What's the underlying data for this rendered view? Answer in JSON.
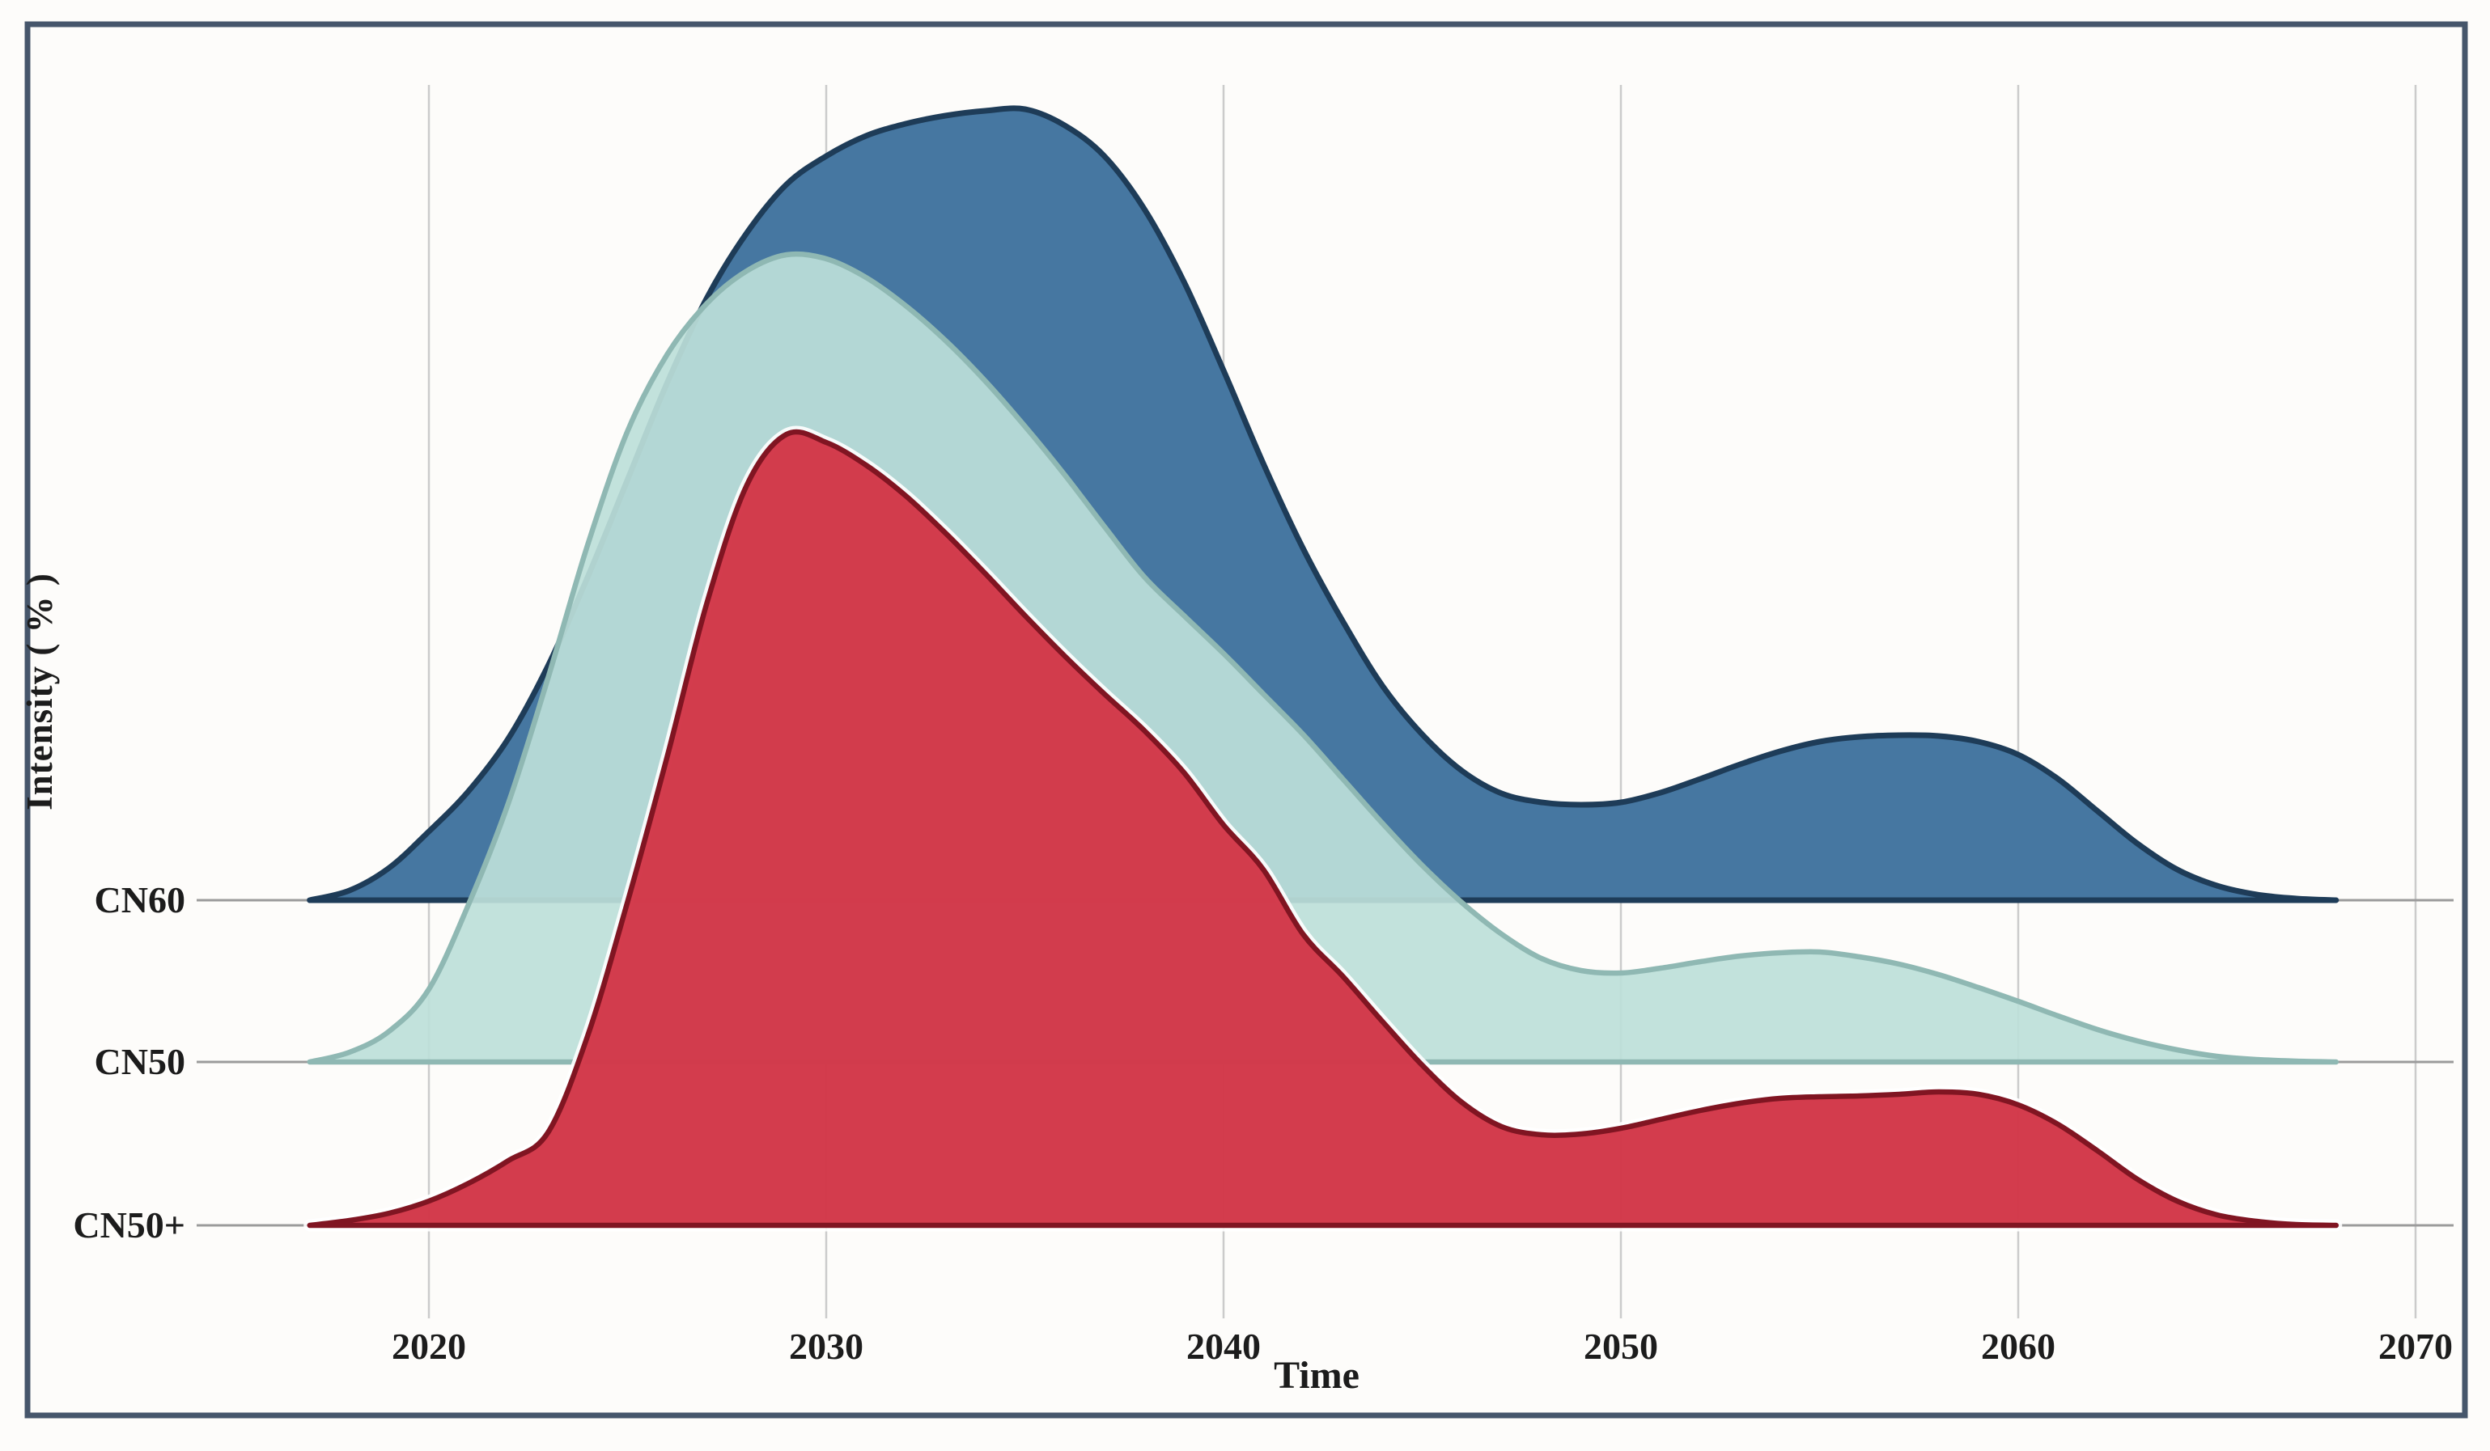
{
  "figure": {
    "xlabel": "Time",
    "ylabel": "Intensity ( % )",
    "rows": [
      "CN60",
      "CN50",
      "CN50+"
    ],
    "x_tick_labels": [
      "2020",
      "2030",
      "2040",
      "2050",
      "2060",
      "2070"
    ]
  },
  "colors": {
    "background": "#fdfcfa",
    "border": "#46566b",
    "grid": "#cbcbcb",
    "baseline": "#9b9b9b",
    "text": "#1c1c1c",
    "halo": "#ffffff",
    "cn60_fill": "#4677a1",
    "cn60_edge": "#1e3c58",
    "cn50_fill": "#bddfd9",
    "cn50_edge": "#8fb8b3",
    "cn50p_fill": "#d23849",
    "cn50p_edge": "#801522"
  },
  "chart_data": {
    "type": "area",
    "subtype": "ridgeline",
    "title": "",
    "xlabel": "Time",
    "ylabel": "Intensity ( % )",
    "x_ticks": [
      2020,
      2030,
      2040,
      2050,
      2060,
      2070
    ],
    "x_range": [
      2016.5,
      2070
    ],
    "grid": "vertical-only",
    "rows_top_to_bottom": [
      "CN60",
      "CN50",
      "CN50+"
    ],
    "draw_order_note": "lower rows drawn on top of upper rows, areas overlap",
    "years": [
      2017,
      2018,
      2019,
      2020,
      2021,
      2022,
      2023,
      2024,
      2025,
      2026,
      2027,
      2028,
      2029,
      2030,
      2031,
      2032,
      2033,
      2034,
      2035,
      2036,
      2037,
      2038,
      2039,
      2040,
      2041,
      2042,
      2043,
      2044,
      2045,
      2046,
      2047,
      2048,
      2049,
      2050,
      2051,
      2052,
      2053,
      2054,
      2055,
      2056,
      2057,
      2058,
      2059,
      2060,
      2061,
      2062,
      2063,
      2064,
      2065,
      2066,
      2067,
      2068
    ],
    "series": [
      {
        "name": "CN60",
        "peak_year": 2035,
        "fill": "#4677a1",
        "edge": "#1e3c58",
        "fill_opacity": 1,
        "halo": false,
        "values": [
          0,
          0.012,
          0.04,
          0.085,
          0.135,
          0.2,
          0.29,
          0.4,
          0.52,
          0.64,
          0.745,
          0.825,
          0.885,
          0.92,
          0.945,
          0.96,
          0.97,
          0.976,
          0.978,
          0.958,
          0.92,
          0.855,
          0.765,
          0.655,
          0.54,
          0.435,
          0.345,
          0.265,
          0.205,
          0.16,
          0.132,
          0.121,
          0.118,
          0.121,
          0.133,
          0.15,
          0.168,
          0.184,
          0.196,
          0.202,
          0.204,
          0.203,
          0.196,
          0.18,
          0.15,
          0.11,
          0.07,
          0.038,
          0.018,
          0.007,
          0.002,
          0
        ]
      },
      {
        "name": "CN50",
        "peak_year": 2029,
        "fill": "#bddfd9",
        "edge": "#8fb8b3",
        "fill_opacity": 0.92,
        "halo": false,
        "values": [
          0,
          0.012,
          0.038,
          0.09,
          0.195,
          0.32,
          0.475,
          0.64,
          0.78,
          0.875,
          0.938,
          0.978,
          0.998,
          0.993,
          0.97,
          0.935,
          0.892,
          0.842,
          0.786,
          0.726,
          0.662,
          0.6,
          0.552,
          0.505,
          0.455,
          0.405,
          0.35,
          0.295,
          0.243,
          0.197,
          0.158,
          0.128,
          0.113,
          0.11,
          0.116,
          0.124,
          0.131,
          0.135,
          0.136,
          0.13,
          0.121,
          0.108,
          0.092,
          0.075,
          0.057,
          0.04,
          0.026,
          0.015,
          0.007,
          0.003,
          0.001,
          0
        ]
      },
      {
        "name": "CN50+",
        "peak_year": 2029,
        "fill": "#d23849",
        "edge": "#801522",
        "fill_opacity": 0.98,
        "halo": true,
        "values": [
          0,
          0.006,
          0.015,
          0.03,
          0.052,
          0.08,
          0.115,
          0.235,
          0.4,
          0.58,
          0.77,
          0.915,
          0.978,
          0.968,
          0.94,
          0.902,
          0.856,
          0.806,
          0.754,
          0.704,
          0.657,
          0.612,
          0.56,
          0.495,
          0.44,
          0.36,
          0.308,
          0.252,
          0.198,
          0.152,
          0.122,
          0.112,
          0.113,
          0.12,
          0.131,
          0.142,
          0.151,
          0.157,
          0.159,
          0.16,
          0.162,
          0.165,
          0.162,
          0.149,
          0.125,
          0.092,
          0.057,
          0.03,
          0.013,
          0.005,
          0.001,
          0
        ]
      }
    ]
  }
}
